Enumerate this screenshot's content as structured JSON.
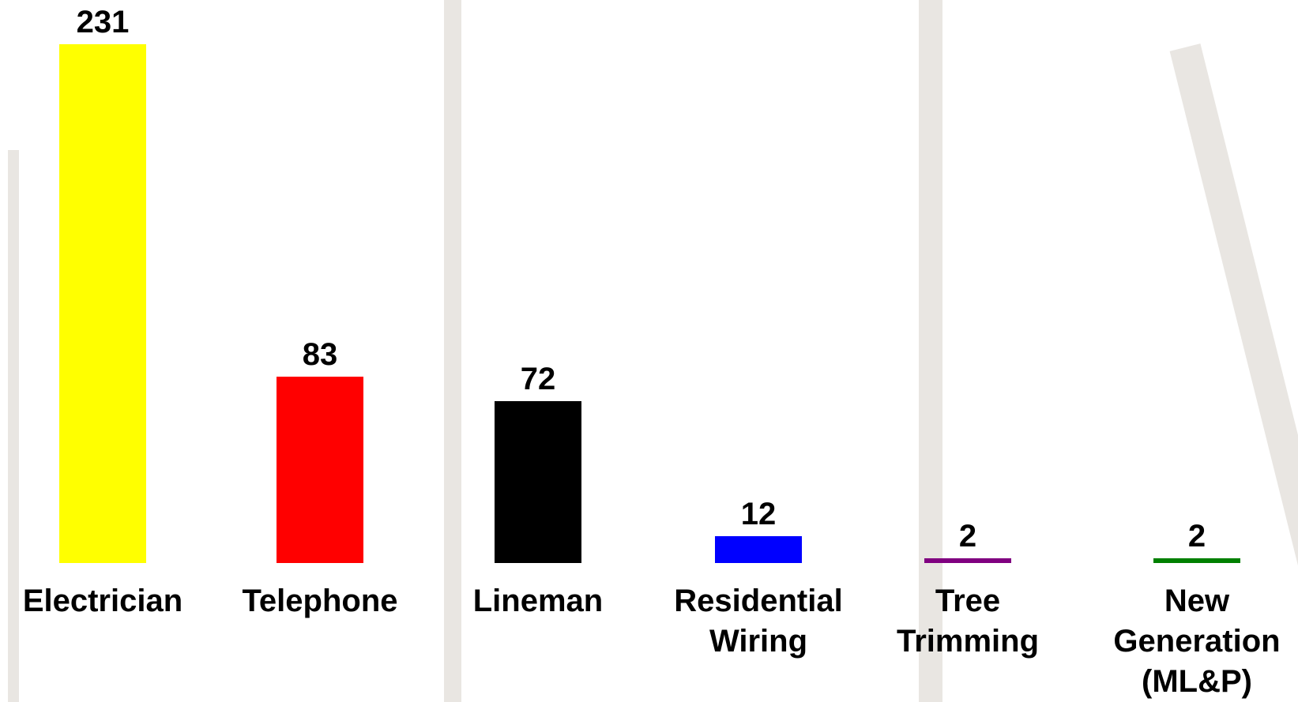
{
  "chart_data": {
    "type": "bar",
    "categories": [
      "Electrician",
      "Telephone",
      "Lineman",
      "Residential Wiring",
      "Tree Trimming",
      "New Generation (ML&P)"
    ],
    "values": [
      231,
      83,
      72,
      12,
      2,
      2
    ],
    "colors": [
      "#ffff00",
      "#ff0000",
      "#000000",
      "#0000ff",
      "#800080",
      "#008000"
    ]
  }
}
